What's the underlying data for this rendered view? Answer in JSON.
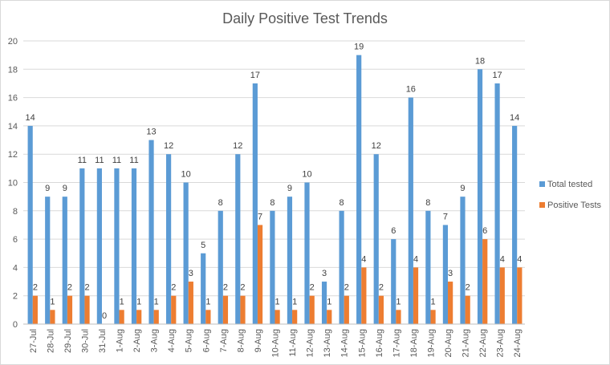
{
  "chart_data": {
    "type": "bar",
    "title": "Daily Positive Test Trends",
    "xlabel": "",
    "ylabel": "",
    "ylim": [
      0,
      20
    ],
    "yticks": [
      0,
      2,
      4,
      6,
      8,
      10,
      12,
      14,
      16,
      18,
      20
    ],
    "grid": true,
    "legend_position": "right",
    "categories": [
      "27-Jul",
      "28-Jul",
      "29-Jul",
      "30-Jul",
      "31-Jul",
      "1-Aug",
      "2-Aug",
      "3-Aug",
      "4-Aug",
      "5-Aug",
      "6-Aug",
      "7-Aug",
      "8-Aug",
      "9-Aug",
      "10-Aug",
      "11-Aug",
      "12-Aug",
      "13-Aug",
      "14-Aug",
      "15-Aug",
      "16-Aug",
      "17-Aug",
      "18-Aug",
      "19-Aug",
      "20-Aug",
      "21-Aug",
      "22-Aug",
      "23-Aug",
      "24-Aug"
    ],
    "series": [
      {
        "name": "Total tested",
        "color": "#5b9bd5",
        "values": [
          14,
          9,
          9,
          11,
          11,
          11,
          11,
          13,
          12,
          10,
          5,
          8,
          12,
          17,
          8,
          9,
          10,
          3,
          8,
          19,
          12,
          6,
          16,
          8,
          7,
          9,
          18,
          17,
          14
        ]
      },
      {
        "name": "Positive Tests",
        "color": "#ed7d31",
        "values": [
          2,
          1,
          2,
          2,
          0,
          1,
          1,
          1,
          2,
          3,
          1,
          2,
          2,
          7,
          1,
          1,
          2,
          1,
          2,
          4,
          2,
          1,
          4,
          1,
          3,
          2,
          6,
          4,
          4
        ]
      }
    ]
  }
}
